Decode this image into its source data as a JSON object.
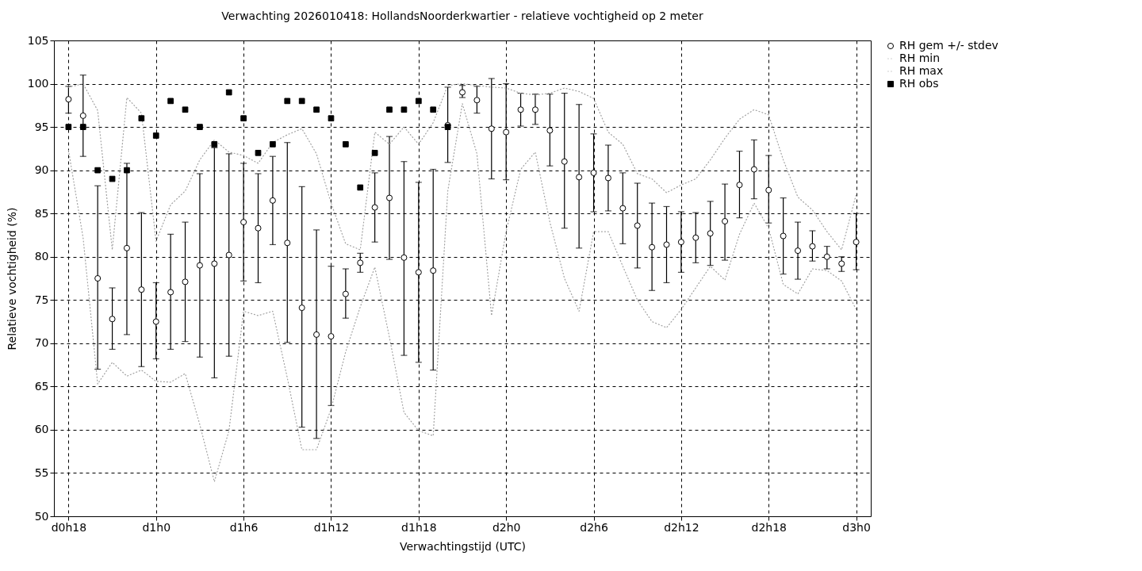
{
  "chart_data": {
    "type": "scatter",
    "title": "Verwachting 2026010418: HollandsNoorderkwartier - relatieve vochtigheid op 2 meter",
    "xlabel": "Verwachtingstijd (UTC)",
    "ylabel": "Relatieve vochtigheid (%)",
    "categories": [
      "d0h18",
      null,
      null,
      null,
      null,
      null,
      "d1h0",
      null,
      null,
      null,
      null,
      null,
      "d1h6",
      null,
      null,
      null,
      null,
      null,
      "d1h12",
      null,
      null,
      null,
      null,
      null,
      "d1h18",
      null,
      null,
      null,
      null,
      null,
      "d2h0",
      null,
      null,
      null,
      null,
      null,
      "d2h6",
      null,
      null,
      null,
      null,
      null,
      "d2h12",
      null,
      null,
      null,
      null,
      null,
      "d2h18",
      null,
      null,
      null,
      null,
      null,
      "d3h0"
    ],
    "ylim": [
      50,
      105
    ],
    "yticks": [
      50,
      55,
      60,
      65,
      70,
      75,
      80,
      85,
      90,
      95,
      100,
      105
    ],
    "grid": true,
    "legend": "top right",
    "series": [
      {
        "name": "RH gem +/- stdev",
        "marker": "circle",
        "color": "#000000",
        "values": [
          98.2,
          96.3,
          77.5,
          72.8,
          81,
          76.2,
          72.5,
          75.9,
          77.1,
          79,
          79.2,
          80.2,
          84,
          83.3,
          86.5,
          81.6,
          74.1,
          71,
          70.8,
          75.7,
          79.3,
          85.7,
          86.8,
          79.9,
          78.2,
          78.4,
          95.2,
          99,
          98.1,
          94.8,
          94.4,
          97,
          97,
          94.6,
          91,
          89.2,
          89.7,
          89.1,
          85.6,
          83.6,
          81.1,
          81.4,
          81.7,
          82.2,
          82.7,
          84.1,
          88.3,
          90.1,
          87.7,
          82.4,
          80.7,
          81.2,
          80,
          79.2,
          81.7
        ],
        "errors": [
          [
            96.6,
            99.7
          ],
          [
            91.6,
            101
          ],
          [
            67,
            88.2
          ],
          [
            69.3,
            76.4
          ],
          [
            71,
            90.8
          ],
          [
            67.3,
            85.1
          ],
          [
            68.2,
            77
          ],
          [
            69.3,
            82.6
          ],
          [
            70.2,
            84
          ],
          [
            68.4,
            89.6
          ],
          [
            66,
            92.6
          ],
          [
            68.5,
            91.9
          ],
          [
            77.2,
            90.8
          ],
          [
            77,
            89.6
          ],
          [
            81.4,
            91.6
          ],
          [
            70.1,
            93.2
          ],
          [
            60.3,
            88.1
          ],
          [
            59,
            83.1
          ],
          [
            62.8,
            78.9
          ],
          [
            72.9,
            78.6
          ],
          [
            78.2,
            80.4
          ],
          [
            81.7,
            89.7
          ],
          [
            79.7,
            93.9
          ],
          [
            68.6,
            91
          ],
          [
            67.8,
            88.6
          ],
          [
            66.9,
            90.1
          ],
          [
            90.9,
            99.6
          ],
          [
            98.4,
            99.8
          ],
          [
            96.6,
            99.7
          ],
          [
            89,
            100.6
          ],
          [
            88.9,
            100
          ],
          [
            95.1,
            98.9
          ],
          [
            95.3,
            98.8
          ],
          [
            90.5,
            98.8
          ],
          [
            83.3,
            98.9
          ],
          [
            81,
            97.6
          ],
          [
            85.2,
            94.2
          ],
          [
            85.3,
            92.9
          ],
          [
            81.5,
            89.7
          ],
          [
            78.7,
            88.5
          ],
          [
            76.1,
            86.2
          ],
          [
            77,
            85.8
          ],
          [
            78.2,
            85.2
          ],
          [
            79.3,
            85.1
          ],
          [
            79,
            86.4
          ],
          [
            79.6,
            88.4
          ],
          [
            84.5,
            92.2
          ],
          [
            86.7,
            93.5
          ],
          [
            83.9,
            91.7
          ],
          [
            78,
            86.8
          ],
          [
            77.4,
            84
          ],
          [
            79.5,
            83
          ],
          [
            78.6,
            81.2
          ],
          [
            78.3,
            80
          ],
          [
            78.5,
            85
          ]
        ]
      },
      {
        "name": "RH min",
        "type": "line",
        "line_style": "dotted",
        "marker": "none",
        "color": "#a0a0a0",
        "values": [
          92.3,
          82.2,
          65.3,
          67.8,
          66.2,
          66.9,
          65.6,
          65.5,
          66.5,
          60.6,
          54,
          59.9,
          73.7,
          73.2,
          73.7,
          66,
          57.7,
          57.7,
          62.4,
          69,
          74.2,
          78.8,
          70.7,
          62,
          59.9,
          59.3,
          87.6,
          97.7,
          91.9,
          73.2,
          82.9,
          90.1,
          92.1,
          84,
          77.5,
          73.7,
          82.9,
          82.9,
          78.9,
          75,
          72.5,
          71.8,
          73.9,
          76.4,
          78.9,
          77.3,
          82.6,
          86.2,
          83.3,
          76.8,
          75.7,
          78.6,
          78.4,
          77.2,
          73.9
        ]
      },
      {
        "name": "RH max",
        "type": "line",
        "line_style": "dotted",
        "marker": "none",
        "color": "#a0a0a0",
        "values": [
          99.6,
          100,
          96.9,
          80.8,
          98.4,
          96.6,
          81.8,
          86,
          87.6,
          91.2,
          93.5,
          92.1,
          91.7,
          90.8,
          93.2,
          94.1,
          94.8,
          91.9,
          86.2,
          81.5,
          80.8,
          94.4,
          93,
          95,
          93,
          95.5,
          99.8,
          100,
          99.8,
          99.6,
          99.5,
          98.9,
          98.7,
          98.9,
          99.5,
          99.1,
          98.3,
          94.4,
          93,
          89.6,
          89,
          87.4,
          88.3,
          89,
          91.2,
          93.7,
          95.9,
          97,
          96.4,
          91.2,
          86.9,
          85.4,
          82.9,
          80.8,
          87.2
        ]
      },
      {
        "name": "RH obs",
        "marker": "square",
        "color": "#000000",
        "values": [
          95,
          95,
          90,
          89,
          90,
          96,
          94,
          98,
          97,
          95,
          93,
          99,
          96,
          92,
          93,
          98,
          98,
          97,
          96,
          93,
          88,
          92,
          97,
          97,
          98,
          97,
          95,
          null,
          null,
          null,
          null,
          null,
          null,
          null,
          null,
          null,
          null,
          null,
          null,
          null,
          null,
          null,
          null,
          null,
          null,
          null,
          null,
          null,
          null,
          null,
          null,
          null,
          null,
          null,
          null
        ]
      }
    ]
  }
}
